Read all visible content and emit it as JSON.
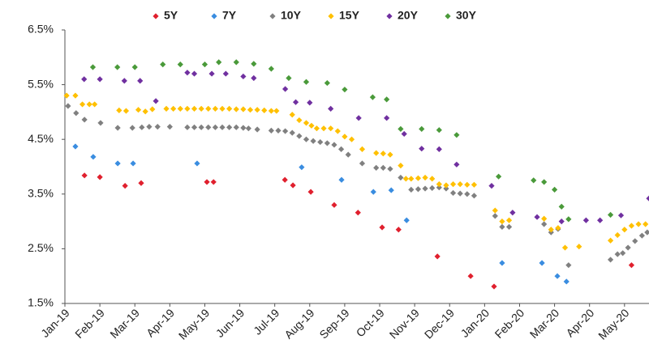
{
  "chart_data": {
    "type": "scatter",
    "xlim": [
      0,
      16.7
    ],
    "ylim": [
      1.5,
      6.5
    ],
    "xticks": [
      {
        "value": 0,
        "label": "Jan-19"
      },
      {
        "value": 1,
        "label": "Feb-19"
      },
      {
        "value": 2,
        "label": "Mar-19"
      },
      {
        "value": 3,
        "label": "Apr-19"
      },
      {
        "value": 4,
        "label": "May-19"
      },
      {
        "value": 5,
        "label": "Jun-19"
      },
      {
        "value": 6,
        "label": "Jul-19"
      },
      {
        "value": 7,
        "label": "Aug-19"
      },
      {
        "value": 8,
        "label": "Sep-19"
      },
      {
        "value": 9,
        "label": "Oct-19"
      },
      {
        "value": 10,
        "label": "Nov-19"
      },
      {
        "value": 11,
        "label": "Dec-19"
      },
      {
        "value": 12,
        "label": "Jan-20"
      },
      {
        "value": 13,
        "label": "Feb-20"
      },
      {
        "value": 14,
        "label": "Mar-20"
      },
      {
        "value": 15,
        "label": "Apr-20"
      },
      {
        "value": 16,
        "label": "May-20"
      }
    ],
    "yticks": [
      {
        "value": 1.5,
        "label": "1.5%"
      },
      {
        "value": 2.5,
        "label": "2.5%"
      },
      {
        "value": 3.5,
        "label": "3.5%"
      },
      {
        "value": 4.5,
        "label": "4.5%"
      },
      {
        "value": 5.5,
        "label": "5.5%"
      },
      {
        "value": 6.5,
        "label": "6.5%"
      }
    ],
    "series": [
      {
        "name": "5Y",
        "color": "#e0202e",
        "x": [
          0.56,
          1.0,
          1.72,
          2.18,
          4.06,
          4.25,
          6.29,
          6.52,
          7.03,
          7.7,
          8.38,
          9.07,
          9.54,
          10.65,
          11.6,
          12.27,
          16.2
        ],
        "values": [
          3.84,
          3.81,
          3.65,
          3.7,
          3.72,
          3.72,
          3.76,
          3.66,
          3.54,
          3.3,
          3.16,
          2.89,
          2.85,
          2.36,
          2.0,
          1.81,
          2.2
        ]
      },
      {
        "name": "7Y",
        "color": "#3a8de0",
        "x": [
          0.3,
          0.81,
          1.51,
          1.95,
          3.78,
          6.77,
          7.91,
          8.82,
          9.33,
          9.77,
          12.5,
          13.64,
          14.08,
          14.34
        ],
        "values": [
          4.37,
          4.18,
          4.06,
          4.06,
          4.06,
          3.99,
          3.76,
          3.54,
          3.57,
          3.02,
          2.24,
          2.24,
          2.0,
          1.9
        ]
      },
      {
        "name": "10Y",
        "color": "#808080",
        "x": [
          0.09,
          0.32,
          0.56,
          1.02,
          1.51,
          1.93,
          2.2,
          2.41,
          2.65,
          3.0,
          3.5,
          3.7,
          3.9,
          4.1,
          4.3,
          4.5,
          4.7,
          4.9,
          5.1,
          5.25,
          5.5,
          5.9,
          6.1,
          6.3,
          6.5,
          6.7,
          6.9,
          7.1,
          7.3,
          7.5,
          7.7,
          7.9,
          8.1,
          8.5,
          8.9,
          9.1,
          9.3,
          9.6,
          9.9,
          10.1,
          10.3,
          10.5,
          10.7,
          10.9,
          11.1,
          11.3,
          11.5,
          11.7,
          12.3,
          12.5,
          12.7,
          13.7,
          13.9,
          14.1,
          14.4,
          15.6,
          15.8,
          15.95,
          16.1,
          16.3,
          16.5,
          16.65
        ],
        "values": [
          5.11,
          4.98,
          4.86,
          4.8,
          4.71,
          4.71,
          4.72,
          4.73,
          4.73,
          4.73,
          4.72,
          4.72,
          4.72,
          4.72,
          4.72,
          4.72,
          4.72,
          4.72,
          4.71,
          4.7,
          4.68,
          4.66,
          4.66,
          4.65,
          4.62,
          4.56,
          4.5,
          4.47,
          4.45,
          4.43,
          4.4,
          4.32,
          4.22,
          4.06,
          3.98,
          3.98,
          3.96,
          3.8,
          3.58,
          3.59,
          3.6,
          3.61,
          3.62,
          3.6,
          3.52,
          3.51,
          3.5,
          3.47,
          3.1,
          2.9,
          2.9,
          2.95,
          2.8,
          2.86,
          2.2,
          2.3,
          2.4,
          2.42,
          2.52,
          2.64,
          2.74,
          2.8
        ]
      },
      {
        "name": "15Y",
        "color": "#ffc000",
        "x": [
          0.05,
          0.3,
          0.5,
          0.7,
          0.85,
          1.55,
          1.75,
          2.1,
          2.3,
          2.5,
          2.9,
          3.1,
          3.3,
          3.5,
          3.7,
          3.9,
          4.1,
          4.3,
          4.5,
          4.7,
          4.9,
          5.1,
          5.3,
          5.5,
          5.7,
          5.9,
          6.05,
          6.5,
          6.7,
          6.9,
          7.05,
          7.2,
          7.4,
          7.6,
          7.8,
          8.0,
          8.2,
          8.5,
          8.9,
          9.1,
          9.3,
          9.6,
          9.75,
          9.9,
          10.1,
          10.3,
          10.5,
          10.7,
          10.9,
          11.1,
          11.3,
          11.5,
          11.7,
          12.3,
          12.5,
          12.7,
          13.7,
          13.9,
          14.1,
          14.3,
          14.7,
          15.6,
          15.8,
          16.0,
          16.2,
          16.4,
          16.6
        ],
        "values": [
          5.3,
          5.3,
          5.14,
          5.14,
          5.14,
          5.03,
          5.02,
          5.04,
          5.01,
          5.05,
          5.06,
          5.06,
          5.06,
          5.06,
          5.06,
          5.06,
          5.06,
          5.06,
          5.06,
          5.06,
          5.05,
          5.05,
          5.04,
          5.04,
          5.03,
          5.02,
          5.02,
          4.95,
          4.85,
          4.8,
          4.75,
          4.7,
          4.7,
          4.7,
          4.65,
          4.55,
          4.5,
          4.32,
          4.25,
          4.24,
          4.22,
          4.02,
          3.78,
          3.78,
          3.79,
          3.8,
          3.78,
          3.68,
          3.66,
          3.68,
          3.68,
          3.67,
          3.67,
          3.2,
          3.0,
          3.02,
          3.05,
          2.85,
          2.88,
          2.52,
          2.54,
          2.65,
          2.75,
          2.85,
          2.92,
          2.95,
          2.95
        ]
      },
      {
        "name": "20Y",
        "color": "#7030a0",
        "x": [
          0.55,
          1.0,
          1.7,
          2.15,
          2.6,
          3.5,
          3.7,
          4.2,
          4.6,
          5.1,
          5.4,
          6.3,
          6.6,
          7.0,
          7.6,
          8.4,
          9.2,
          9.7,
          10.2,
          10.7,
          11.2,
          12.2,
          12.8,
          13.5,
          14.2,
          14.9,
          15.3,
          15.9,
          16.7
        ],
        "values": [
          5.6,
          5.6,
          5.57,
          5.57,
          5.2,
          5.72,
          5.7,
          5.7,
          5.7,
          5.65,
          5.62,
          5.42,
          5.18,
          5.17,
          5.06,
          4.89,
          4.89,
          4.6,
          4.33,
          4.32,
          4.04,
          3.65,
          3.16,
          3.08,
          3.0,
          3.02,
          3.02,
          3.11,
          3.42
        ]
      },
      {
        "name": "30Y",
        "color": "#4a9a3a",
        "x": [
          0.8,
          1.5,
          2.0,
          2.8,
          3.3,
          4.0,
          4.4,
          4.9,
          5.4,
          5.9,
          6.4,
          6.9,
          7.5,
          8.0,
          8.8,
          9.2,
          9.6,
          10.2,
          10.7,
          11.2,
          12.4,
          13.4,
          13.7,
          14.0,
          14.2,
          14.4,
          15.6
        ],
        "values": [
          5.82,
          5.82,
          5.82,
          5.87,
          5.87,
          5.87,
          5.91,
          5.91,
          5.88,
          5.79,
          5.62,
          5.55,
          5.53,
          5.41,
          5.27,
          5.23,
          4.69,
          4.69,
          4.67,
          4.58,
          3.82,
          3.75,
          3.72,
          3.58,
          3.27,
          3.04,
          3.12
        ]
      }
    ]
  }
}
